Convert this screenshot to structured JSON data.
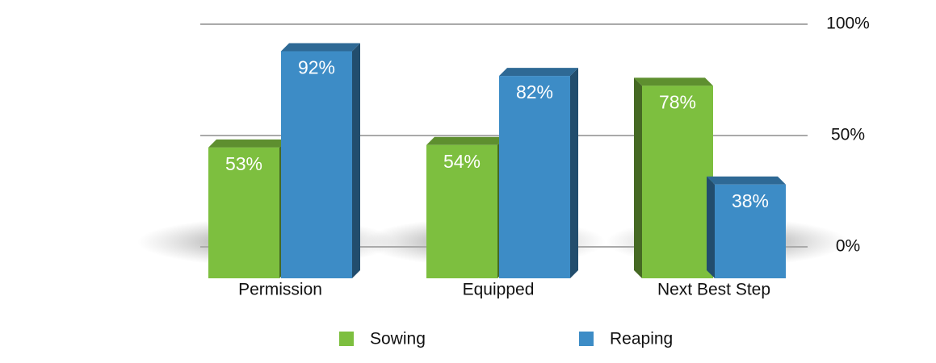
{
  "chart_data": {
    "type": "bar",
    "categories": [
      "Permission",
      "Equipped",
      "Next Best Step"
    ],
    "series": [
      {
        "name": "Sowing",
        "color": "#7dbf3f",
        "values": [
          53,
          54,
          78
        ],
        "value_labels": [
          "53%",
          "54%",
          "78%"
        ]
      },
      {
        "name": "Reaping",
        "color": "#3d8cc6",
        "values": [
          92,
          82,
          38
        ],
        "value_labels": [
          "92%",
          "82%",
          "38%"
        ]
      }
    ],
    "ylim": [
      0,
      100
    ],
    "yticks": [
      {
        "value": 0,
        "label": "0%"
      },
      {
        "value": 50,
        "label": "50%"
      },
      {
        "value": 100,
        "label": "100%"
      }
    ],
    "grid": true
  }
}
